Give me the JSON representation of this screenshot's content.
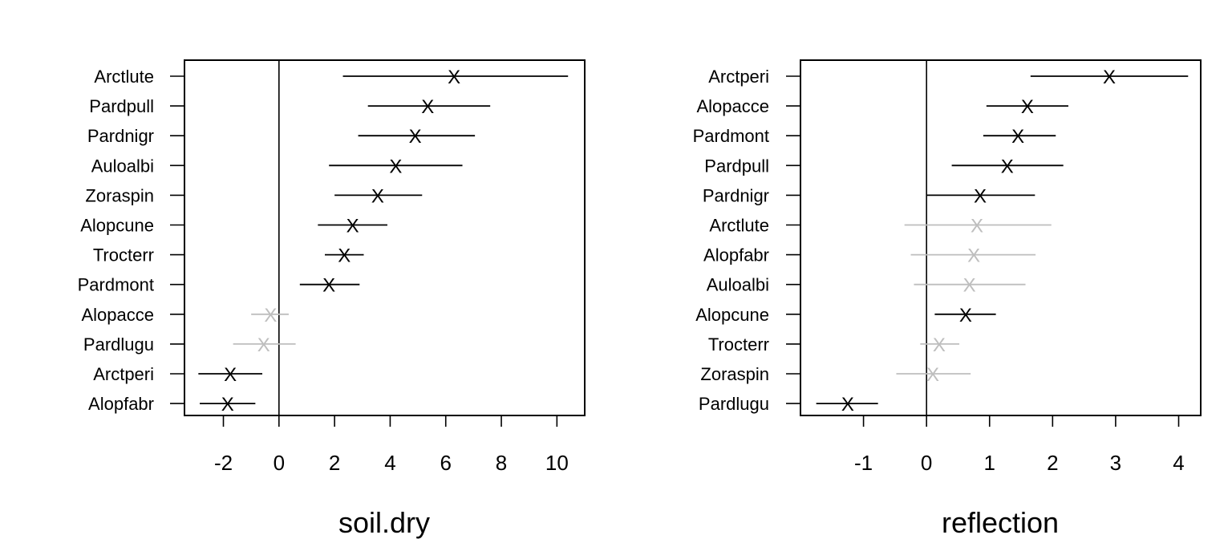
{
  "chart_data": [
    {
      "type": "scatter",
      "xlabel": "soil.dry",
      "xlim": [
        -3.4,
        11.0
      ],
      "xticks": [
        -2,
        0,
        2,
        4,
        6,
        8,
        10
      ],
      "colors": {
        "significant": "#000000",
        "nonsignificant": "#bebebe"
      },
      "rows": [
        {
          "label": "Arctlute",
          "est": 6.3,
          "lo": 2.3,
          "hi": 10.4,
          "significant": true
        },
        {
          "label": "Pardpull",
          "est": 5.35,
          "lo": 3.2,
          "hi": 7.6,
          "significant": true
        },
        {
          "label": "Pardnigr",
          "est": 4.9,
          "lo": 2.85,
          "hi": 7.05,
          "significant": true
        },
        {
          "label": "Auloalbi",
          "est": 4.2,
          "lo": 1.8,
          "hi": 6.6,
          "significant": true
        },
        {
          "label": "Zoraspin",
          "est": 3.55,
          "lo": 2.0,
          "hi": 5.15,
          "significant": true
        },
        {
          "label": "Alopcune",
          "est": 2.65,
          "lo": 1.4,
          "hi": 3.9,
          "significant": true
        },
        {
          "label": "Trocterr",
          "est": 2.35,
          "lo": 1.65,
          "hi": 3.05,
          "significant": true
        },
        {
          "label": "Pardmont",
          "est": 1.8,
          "lo": 0.75,
          "hi": 2.9,
          "significant": true
        },
        {
          "label": "Alopacce",
          "est": -0.3,
          "lo": -1.0,
          "hi": 0.35,
          "significant": false
        },
        {
          "label": "Pardlugu",
          "est": -0.55,
          "lo": -1.65,
          "hi": 0.6,
          "significant": false
        },
        {
          "label": "Arctperi",
          "est": -1.75,
          "lo": -2.9,
          "hi": -0.6,
          "significant": true
        },
        {
          "label": "Alopfabr",
          "est": -1.85,
          "lo": -2.85,
          "hi": -0.85,
          "significant": true
        }
      ]
    },
    {
      "type": "scatter",
      "xlabel": "reflection",
      "xlim": [
        -2.0,
        4.35
      ],
      "xticks": [
        -1,
        0,
        1,
        2,
        3,
        4
      ],
      "colors": {
        "significant": "#000000",
        "nonsignificant": "#bebebe"
      },
      "rows": [
        {
          "label": "Arctperi",
          "est": 2.9,
          "lo": 1.65,
          "hi": 4.15,
          "significant": true
        },
        {
          "label": "Alopacce",
          "est": 1.6,
          "lo": 0.95,
          "hi": 2.25,
          "significant": true
        },
        {
          "label": "Pardmont",
          "est": 1.45,
          "lo": 0.9,
          "hi": 2.05,
          "significant": true
        },
        {
          "label": "Pardpull",
          "est": 1.28,
          "lo": 0.4,
          "hi": 2.17,
          "significant": true
        },
        {
          "label": "Pardnigr",
          "est": 0.85,
          "lo": 0.0,
          "hi": 1.72,
          "significant": true
        },
        {
          "label": "Arctlute",
          "est": 0.8,
          "lo": -0.35,
          "hi": 1.98,
          "significant": false
        },
        {
          "label": "Alopfabr",
          "est": 0.75,
          "lo": -0.25,
          "hi": 1.73,
          "significant": false
        },
        {
          "label": "Auloalbi",
          "est": 0.68,
          "lo": -0.2,
          "hi": 1.57,
          "significant": false
        },
        {
          "label": "Alopcune",
          "est": 0.62,
          "lo": 0.13,
          "hi": 1.1,
          "significant": true
        },
        {
          "label": "Trocterr",
          "est": 0.2,
          "lo": -0.1,
          "hi": 0.52,
          "significant": false
        },
        {
          "label": "Zoraspin",
          "est": 0.1,
          "lo": -0.48,
          "hi": 0.7,
          "significant": false
        },
        {
          "label": "Pardlugu",
          "est": -1.25,
          "lo": -1.75,
          "hi": -0.77,
          "significant": true
        }
      ]
    }
  ]
}
